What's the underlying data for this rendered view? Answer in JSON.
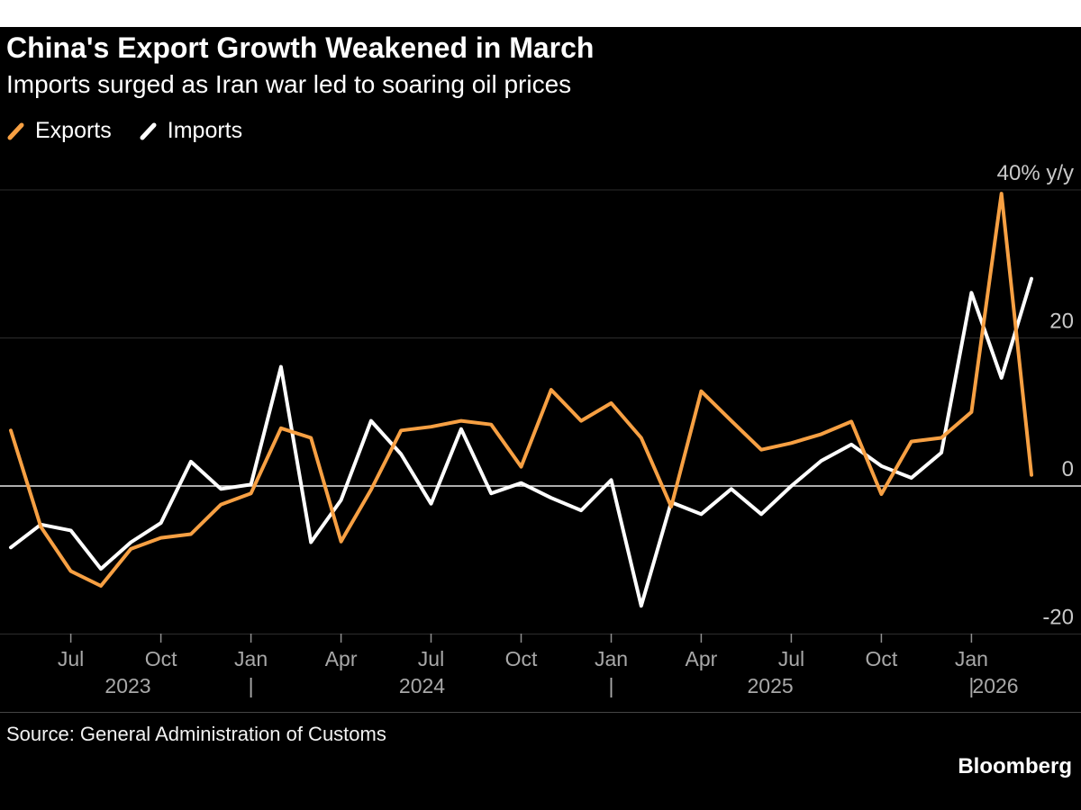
{
  "header": {
    "title": "China's Export Growth Weakened in March",
    "subtitle": "Imports surged as Iran war led to soaring oil prices"
  },
  "legend": {
    "items": [
      {
        "label": "Exports",
        "color": "#f7a043"
      },
      {
        "label": "Imports",
        "color": "#ffffff"
      }
    ]
  },
  "footer": {
    "source": "Source: General Administration of Customs",
    "brand": "Bloomberg"
  },
  "colors": {
    "background": "#000000",
    "exports_line": "#f7a043",
    "imports_line": "#ffffff",
    "zero_line": "#e8e8e8",
    "gridline": "#2d2d2d",
    "axis_text": "#c9c9c9",
    "tick_text": "#a8a8a8"
  },
  "chart_data": {
    "type": "line",
    "title": "China's Export Growth Weakened in March",
    "subtitle": "Imports surged as Iran war led to soaring oil prices",
    "unit": "% y/y",
    "grid": "horizontal",
    "legend_position": "top-left",
    "ylim": [
      -24,
      42
    ],
    "x": [
      "May 2023",
      "Jun 2023",
      "Jul 2023",
      "Aug 2023",
      "Sep 2023",
      "Oct 2023",
      "Nov 2023",
      "Dec 2023",
      "Jan 2024",
      "Feb 2024",
      "Mar 2024",
      "Apr 2024",
      "May 2024",
      "Jun 2024",
      "Jul 2024",
      "Aug 2024",
      "Sep 2024",
      "Oct 2024",
      "Nov 2024",
      "Dec 2024",
      "Jan 2025",
      "Feb 2025",
      "Mar 2025",
      "Apr 2025",
      "May 2025",
      "Jun 2025",
      "Jul 2025",
      "Aug 2025",
      "Sep 2025",
      "Oct 2025",
      "Nov 2025",
      "Dec 2025",
      "Jan 2026",
      "Feb 2026",
      "Mar 2026"
    ],
    "series": [
      {
        "name": "Exports",
        "color": "#f7a043",
        "values": [
          7.5,
          -5.5,
          -11.5,
          -13.5,
          -8.5,
          -7,
          -6.5,
          -2.5,
          -1,
          7.8,
          6.5,
          -7.5,
          -0.5,
          7.5,
          8,
          8.8,
          8.3,
          2.6,
          13,
          8.8,
          11.2,
          6.5,
          -2.8,
          12.8,
          8.8,
          4.9,
          5.8,
          7,
          8.7,
          -1.1,
          6,
          6.5,
          10,
          39.5,
          1.5
        ]
      },
      {
        "name": "Imports",
        "color": "#ffffff",
        "values": [
          -8.3,
          -5.2,
          -6,
          -11.2,
          -7.6,
          -5,
          3.3,
          -0.4,
          0.2,
          16.1,
          -7.6,
          -1.9,
          8.8,
          4.3,
          -2.4,
          7.7,
          -1,
          0.4,
          -1.6,
          -3.3,
          0.8,
          -16.2,
          -2.2,
          -3.8,
          -0.4,
          -3.8,
          0,
          3.4,
          5.6,
          2.7,
          1.1,
          4.5,
          26.1,
          14.6,
          28
        ]
      }
    ],
    "y_gridlines": [
      {
        "value": 40,
        "label": "40% y/y"
      },
      {
        "value": 20,
        "label": "20"
      },
      {
        "value": 0,
        "label": "0"
      },
      {
        "value": -20,
        "label": "-20"
      }
    ],
    "x_ticks": [
      {
        "index": 2,
        "label": "Jul"
      },
      {
        "index": 5,
        "label": "Oct"
      },
      {
        "index": 8,
        "label": "Jan"
      },
      {
        "index": 11,
        "label": "Apr"
      },
      {
        "index": 14,
        "label": "Jul"
      },
      {
        "index": 17,
        "label": "Oct"
      },
      {
        "index": 20,
        "label": "Jan"
      },
      {
        "index": 23,
        "label": "Apr"
      },
      {
        "index": 26,
        "label": "Jul"
      },
      {
        "index": 29,
        "label": "Oct"
      },
      {
        "index": 32,
        "label": "Jan"
      }
    ],
    "x_years": [
      {
        "index": 3.9,
        "label": "2023"
      },
      {
        "index": 8,
        "label": "|"
      },
      {
        "index": 13.7,
        "label": "2024"
      },
      {
        "index": 20,
        "label": "|"
      },
      {
        "index": 25.3,
        "label": "2025"
      },
      {
        "index": 32,
        "label": "|"
      },
      {
        "index": 32.8,
        "label": "2026"
      }
    ]
  }
}
